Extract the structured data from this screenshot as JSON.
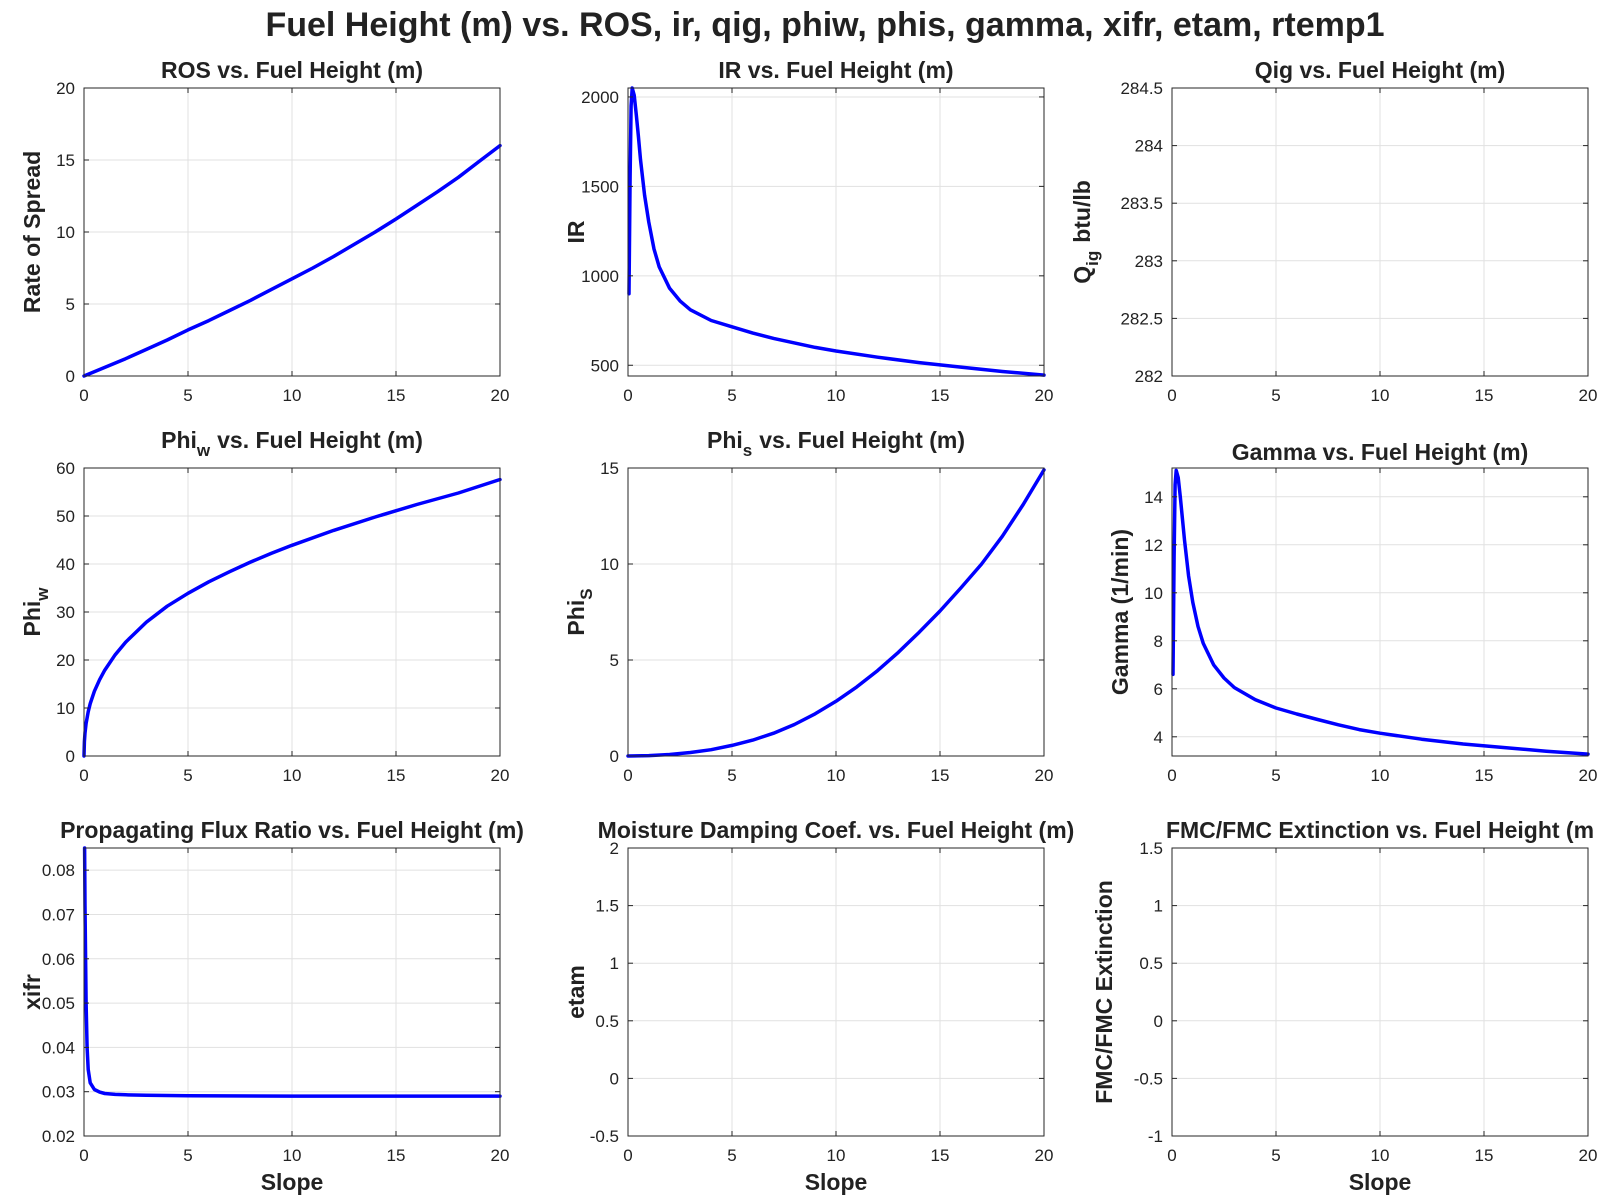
{
  "figure": {
    "title": "Fuel Height (m) vs. ROS, ir, qig, phiw, phis, gamma, xifr, etam, rtemp1",
    "line_color": "#0000ff"
  },
  "chart_data": [
    {
      "type": "line",
      "title": "ROS vs. Fuel Height (m)",
      "xlabel": "",
      "ylabel": "Rate of Spread",
      "xlim": [
        0,
        20
      ],
      "ylim": [
        0,
        20
      ],
      "xticks": [
        0,
        5,
        10,
        15,
        20
      ],
      "yticks": [
        0,
        5,
        10,
        15,
        20
      ],
      "xtick_labels": [
        "0",
        "5",
        "10",
        "15",
        "20"
      ],
      "ytick_labels": [
        "0",
        "5",
        "10",
        "15",
        "20"
      ],
      "grid": true,
      "series": [
        {
          "x": [
            0,
            1,
            2,
            3,
            4,
            5,
            6,
            7,
            8,
            9,
            10,
            11,
            12,
            13,
            14,
            15,
            16,
            17,
            18,
            19,
            20
          ],
          "y": [
            0,
            0.6,
            1.2,
            1.85,
            2.5,
            3.2,
            3.85,
            4.55,
            5.25,
            6.0,
            6.75,
            7.5,
            8.3,
            9.15,
            10.0,
            10.9,
            11.85,
            12.8,
            13.8,
            14.9,
            16.0
          ]
        }
      ]
    },
    {
      "type": "line",
      "title": "IR vs. Fuel Height (m)",
      "xlabel": "",
      "ylabel": "IR",
      "xlim": [
        0,
        20
      ],
      "ylim": [
        440,
        2050
      ],
      "xticks": [
        0,
        5,
        10,
        15,
        20
      ],
      "yticks": [
        500,
        1000,
        1500,
        2000
      ],
      "xtick_labels": [
        "0",
        "5",
        "10",
        "15",
        "20"
      ],
      "ytick_labels": [
        "500",
        "1000",
        "1500",
        "2000"
      ],
      "grid": true,
      "series": [
        {
          "x": [
            0.05,
            0.1,
            0.15,
            0.2,
            0.3,
            0.4,
            0.5,
            0.6,
            0.8,
            1.0,
            1.25,
            1.5,
            2.0,
            2.5,
            3.0,
            4.0,
            5.0,
            6.0,
            7.0,
            8.0,
            9.0,
            10.0,
            12.0,
            14.0,
            16.0,
            18.0,
            20.0
          ],
          "y": [
            900,
            1550,
            1950,
            2050,
            2010,
            1900,
            1780,
            1650,
            1450,
            1300,
            1150,
            1050,
            930,
            860,
            810,
            750,
            715,
            680,
            650,
            625,
            600,
            580,
            545,
            515,
            490,
            465,
            445
          ]
        }
      ]
    },
    {
      "type": "line",
      "title": "Qig vs. Fuel Height (m)",
      "xlabel": "",
      "ylabel": "Q",
      "ylabel_subscript": "ig",
      "ylabel_suffix": "btu/lb",
      "xlim": [
        0,
        20
      ],
      "ylim": [
        282,
        284.5
      ],
      "xticks": [
        0,
        5,
        10,
        15,
        20
      ],
      "yticks": [
        282,
        282.5,
        283,
        283.5,
        284,
        284.5
      ],
      "xtick_labels": [
        "0",
        "5",
        "10",
        "15",
        "20"
      ],
      "ytick_labels": [
        "282",
        "282.5",
        "283",
        "283.5",
        "284",
        "284.5"
      ],
      "grid": true,
      "series": []
    },
    {
      "type": "line",
      "title": "Phi",
      "title_subscript": "w",
      "title_suffix": "vs. Fuel Height (m)",
      "xlabel": "",
      "ylabel": "Phi",
      "ylabel_subscript": "w",
      "xlim": [
        0,
        20
      ],
      "ylim": [
        0,
        60
      ],
      "xticks": [
        0,
        5,
        10,
        15,
        20
      ],
      "yticks": [
        0,
        10,
        20,
        30,
        40,
        50,
        60
      ],
      "xtick_labels": [
        "0",
        "5",
        "10",
        "15",
        "20"
      ],
      "ytick_labels": [
        "0",
        "10",
        "20",
        "30",
        "40",
        "50",
        "60"
      ],
      "grid": true,
      "series": [
        {
          "x": [
            0,
            0.02,
            0.05,
            0.1,
            0.2,
            0.3,
            0.5,
            0.75,
            1.0,
            1.5,
            2.0,
            3.0,
            4.0,
            5.0,
            6.0,
            7.0,
            8.0,
            9.0,
            10.0,
            12.0,
            14.0,
            16.0,
            18.0,
            20.0
          ],
          "y": [
            0,
            3.0,
            4.8,
            6.8,
            9.2,
            10.9,
            13.5,
            15.9,
            17.9,
            21.1,
            23.7,
            27.9,
            31.2,
            33.9,
            36.3,
            38.4,
            40.4,
            42.2,
            43.9,
            47.0,
            49.8,
            52.4,
            54.8,
            57.6
          ]
        }
      ]
    },
    {
      "type": "line",
      "title": "Phi",
      "title_subscript": "s",
      "title_suffix": "vs. Fuel Height (m)",
      "xlabel": "",
      "ylabel": "Phi",
      "ylabel_subscript": "S",
      "xlim": [
        0,
        20
      ],
      "ylim": [
        0,
        15
      ],
      "xticks": [
        0,
        5,
        10,
        15,
        20
      ],
      "yticks": [
        0,
        5,
        10,
        15
      ],
      "xtick_labels": [
        "0",
        "5",
        "10",
        "15",
        "20"
      ],
      "ytick_labels": [
        "0",
        "5",
        "10",
        "15"
      ],
      "grid": true,
      "series": [
        {
          "x": [
            0,
            1,
            2,
            3,
            4,
            5,
            6,
            7,
            8,
            9,
            10,
            11,
            12,
            13,
            14,
            15,
            16,
            17,
            18,
            19,
            20
          ],
          "y": [
            0,
            0.02,
            0.08,
            0.18,
            0.33,
            0.55,
            0.83,
            1.19,
            1.64,
            2.2,
            2.85,
            3.6,
            4.45,
            5.4,
            6.45,
            7.55,
            8.75,
            10.0,
            11.45,
            13.1,
            14.9
          ]
        }
      ]
    },
    {
      "type": "line",
      "title": "Gamma vs. Fuel Height (m)",
      "xlabel": "",
      "ylabel": "Gamma (1/min)",
      "xlim": [
        0,
        20
      ],
      "ylim": [
        3.2,
        15.2
      ],
      "xticks": [
        0,
        5,
        10,
        15,
        20
      ],
      "yticks": [
        4,
        6,
        8,
        10,
        12,
        14
      ],
      "xtick_labels": [
        "0",
        "5",
        "10",
        "15",
        "20"
      ],
      "ytick_labels": [
        "4",
        "6",
        "8",
        "10",
        "12",
        "14"
      ],
      "grid": true,
      "series": [
        {
          "x": [
            0.05,
            0.1,
            0.15,
            0.2,
            0.3,
            0.4,
            0.5,
            0.6,
            0.8,
            1.0,
            1.25,
            1.5,
            2.0,
            2.5,
            3.0,
            4.0,
            5.0,
            6.0,
            7.0,
            8.0,
            9.0,
            10.0,
            12.0,
            14.0,
            16.0,
            18.0,
            20.0
          ],
          "y": [
            6.6,
            11.5,
            14.5,
            15.1,
            14.8,
            14.0,
            13.1,
            12.2,
            10.7,
            9.6,
            8.6,
            7.9,
            7.0,
            6.45,
            6.05,
            5.55,
            5.2,
            4.95,
            4.72,
            4.5,
            4.3,
            4.15,
            3.9,
            3.7,
            3.55,
            3.4,
            3.28
          ]
        }
      ]
    },
    {
      "type": "line",
      "title": "Propagating Flux Ratio vs. Fuel Height (m)",
      "xlabel": "Slope",
      "ylabel": "xifr",
      "xlim": [
        0,
        20
      ],
      "ylim": [
        0.02,
        0.085
      ],
      "xticks": [
        0,
        5,
        10,
        15,
        20
      ],
      "yticks": [
        0.02,
        0.03,
        0.04,
        0.05,
        0.06,
        0.07,
        0.08
      ],
      "xtick_labels": [
        "0",
        "5",
        "10",
        "15",
        "20"
      ],
      "ytick_labels": [
        "0.02",
        "0.03",
        "0.04",
        "0.05",
        "0.06",
        "0.07",
        "0.08"
      ],
      "grid": true,
      "series": [
        {
          "x": [
            0.03,
            0.05,
            0.08,
            0.1,
            0.15,
            0.2,
            0.3,
            0.5,
            0.75,
            1.0,
            1.5,
            2.0,
            3.0,
            5.0,
            10.0,
            15.0,
            20.0
          ],
          "y": [
            0.085,
            0.072,
            0.058,
            0.05,
            0.04,
            0.035,
            0.032,
            0.0305,
            0.0299,
            0.0296,
            0.0294,
            0.0293,
            0.0292,
            0.0291,
            0.029,
            0.029,
            0.029
          ]
        }
      ]
    },
    {
      "type": "line",
      "title": "Moisture Damping Coef. vs. Fuel Height (m)",
      "xlabel": "Slope",
      "ylabel": "etam",
      "xlim": [
        0,
        20
      ],
      "ylim": [
        -0.5,
        2
      ],
      "xticks": [
        0,
        5,
        10,
        15,
        20
      ],
      "yticks": [
        -0.5,
        0,
        0.5,
        1,
        1.5,
        2
      ],
      "xtick_labels": [
        "0",
        "5",
        "10",
        "15",
        "20"
      ],
      "ytick_labels": [
        "-0.5",
        "0",
        "0.5",
        "1",
        "1.5",
        "2"
      ],
      "grid": true,
      "series": []
    },
    {
      "type": "line",
      "title": "FMC/FMC Extinction vs. Fuel Height (m",
      "xlabel": "Slope",
      "ylabel": "FMC/FMC Extinction",
      "xlim": [
        0,
        20
      ],
      "ylim": [
        -1,
        1.5
      ],
      "xticks": [
        0,
        5,
        10,
        15,
        20
      ],
      "yticks": [
        -1,
        -0.5,
        0,
        0.5,
        1,
        1.5
      ],
      "xtick_labels": [
        "0",
        "5",
        "10",
        "15",
        "20"
      ],
      "ytick_labels": [
        "-1",
        "-0.5",
        "0",
        "0.5",
        "1",
        "1.5"
      ],
      "grid": true,
      "series": []
    }
  ]
}
